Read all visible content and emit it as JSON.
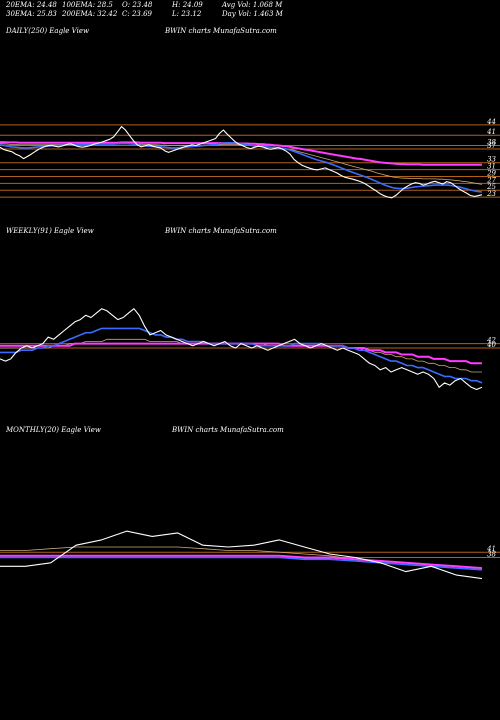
{
  "header": {
    "ema20": "20EMA: 24.48",
    "ema100": "100EMA: 28.5",
    "open": "O: 23.48",
    "high": "H: 24.09",
    "avgvol": "Avg Vol: 1.068 M",
    "ema30": "30EMA: 25.83",
    "ema200": "200EMA: 32.42",
    "close": "C: 23.69",
    "low": "L: 23.12",
    "dayvol": "Day Vol: 1.463 M"
  },
  "panels": {
    "daily": {
      "left_title": "DAILY(250) Eagle  View",
      "right_title": "BWIN  charts MunafaSutra.com"
    },
    "weekly": {
      "left_title": "WEEKLY(91) Eagle  View",
      "right_title": "BWIN  charts MunafaSutra.com"
    },
    "monthly": {
      "left_title": "MONTHLY(20) Eagle  View",
      "right_title": "BWIN  charts MunafaSutra.com"
    }
  },
  "colors": {
    "background": "#000000",
    "price": "#ffffff",
    "ema_short": "#3a6cff",
    "ema_long": "#ff3cff",
    "level_line": "#b0601a",
    "ema_mid": "#c8a878"
  },
  "chart_data": [
    {
      "type": "line",
      "name": "daily",
      "levels": [
        44,
        41,
        38,
        37,
        33,
        31,
        29,
        27,
        25,
        23
      ],
      "level_labels": [
        "44",
        "41",
        "38",
        "37",
        "33",
        "31",
        "29",
        "27",
        "25",
        "23"
      ],
      "ylim": [
        21,
        46
      ],
      "price": [
        37.5,
        36.8,
        36.5,
        36.2,
        35.5,
        35.0,
        34.2,
        34.8,
        35.5,
        36.3,
        37.0,
        37.5,
        37.9,
        38.1,
        37.8,
        37.6,
        37.9,
        38.3,
        38.5,
        38.1,
        37.7,
        37.5,
        37.7,
        38.0,
        38.4,
        38.7,
        39.0,
        39.4,
        39.8,
        40.5,
        42.0,
        43.5,
        42.5,
        41.0,
        39.5,
        38.2,
        37.6,
        37.9,
        38.2,
        37.8,
        37.5,
        37.3,
        36.5,
        36.0,
        36.4,
        36.8,
        37.2,
        37.6,
        37.9,
        38.2,
        38.0,
        38.4,
        38.8,
        39.2,
        39.6,
        40.0,
        41.5,
        42.5,
        41.3,
        40.2,
        39.1,
        38.4,
        37.9,
        37.4,
        37.1,
        37.5,
        37.8,
        37.6,
        37.2,
        36.9,
        37.1,
        37.4,
        37.0,
        36.4,
        35.5,
        34.0,
        33.1,
        32.3,
        31.8,
        31.4,
        31.1,
        30.9,
        31.2,
        31.5,
        31.0,
        30.5,
        30.0,
        29.3,
        28.8,
        28.5,
        28.2,
        27.9,
        27.5,
        27.0,
        26.3,
        25.5,
        24.8,
        24.0,
        23.4,
        23.0,
        22.8,
        23.5,
        24.5,
        25.5,
        26.2,
        26.8,
        27.2,
        27.0,
        26.5,
        26.8,
        27.3,
        27.6,
        27.2,
        26.8,
        27.5,
        27.2,
        26.4,
        25.5,
        24.8,
        24.2,
        23.5,
        23.2,
        23.4,
        23.69
      ],
      "ema_short": [
        38.2,
        38.0,
        37.8,
        37.6,
        37.5,
        37.4,
        37.3,
        37.3,
        37.4,
        37.5,
        37.6,
        37.7,
        37.8,
        37.9,
        38.0,
        38.0,
        38.1,
        38.1,
        38.2,
        38.2,
        38.3,
        38.3,
        38.3,
        38.3,
        38.3,
        38.4,
        38.4,
        38.4,
        38.4,
        38.4,
        38.5,
        38.6,
        38.6,
        38.5,
        38.4,
        38.2,
        38.0,
        37.9,
        37.8,
        37.7,
        37.7,
        37.6,
        37.5,
        37.4,
        37.3,
        37.3,
        37.4,
        37.5,
        37.6,
        37.7,
        37.8,
        37.9,
        38.0,
        38.1,
        38.2,
        38.3,
        38.5,
        38.7,
        38.8,
        38.8,
        38.7,
        38.6,
        38.4,
        38.2,
        38.0,
        37.9,
        37.8,
        37.7,
        37.6,
        37.5,
        37.4,
        37.3,
        37.2,
        37.0,
        36.7,
        36.3,
        35.9,
        35.5,
        35.0,
        34.6,
        34.2,
        33.8,
        33.5,
        33.2,
        32.8,
        32.4,
        32.0,
        31.5,
        31.1,
        30.6,
        30.2,
        29.8,
        29.4,
        29.0,
        28.6,
        28.1,
        27.6,
        27.1,
        26.6,
        26.2,
        25.8,
        25.6,
        25.5,
        25.5,
        25.6,
        25.8,
        26.0,
        26.1,
        26.2,
        26.3,
        26.4,
        26.5,
        26.5,
        26.5,
        26.5,
        26.4,
        26.2,
        26.0,
        25.7,
        25.4,
        25.1,
        24.8,
        24.6,
        24.48
      ],
      "ema_long": [
        39.0,
        39.0,
        38.9,
        38.9,
        38.9,
        38.8,
        38.8,
        38.8,
        38.8,
        38.8,
        38.8,
        38.8,
        38.8,
        38.8,
        38.8,
        38.8,
        38.8,
        38.8,
        38.8,
        38.8,
        38.8,
        38.8,
        38.8,
        38.8,
        38.8,
        38.8,
        38.8,
        38.8,
        38.8,
        38.8,
        38.8,
        38.9,
        38.9,
        38.9,
        38.9,
        38.9,
        38.8,
        38.8,
        38.8,
        38.8,
        38.8,
        38.8,
        38.7,
        38.7,
        38.7,
        38.7,
        38.7,
        38.7,
        38.7,
        38.7,
        38.7,
        38.7,
        38.7,
        38.7,
        38.7,
        38.7,
        38.7,
        38.7,
        38.7,
        38.7,
        38.7,
        38.6,
        38.6,
        38.6,
        38.5,
        38.5,
        38.4,
        38.4,
        38.3,
        38.2,
        38.1,
        38.0,
        37.9,
        37.8,
        37.6,
        37.4,
        37.2,
        37.0,
        36.8,
        36.6,
        36.4,
        36.2,
        36.0,
        35.8,
        35.6,
        35.4,
        35.2,
        35.0,
        34.8,
        34.6,
        34.4,
        34.2,
        34.1,
        33.9,
        33.7,
        33.5,
        33.3,
        33.1,
        33.0,
        32.9,
        32.8,
        32.7,
        32.6,
        32.6,
        32.5,
        32.5,
        32.5,
        32.5,
        32.4,
        32.4,
        32.4,
        32.4,
        32.4,
        32.4,
        32.4,
        32.4,
        32.4,
        32.4,
        32.4,
        32.4,
        32.4,
        32.4,
        32.4,
        32.42
      ],
      "ema_mid": [
        38.6,
        38.5,
        38.4,
        38.3,
        38.3,
        38.2,
        38.2,
        38.2,
        38.2,
        38.2,
        38.2,
        38.2,
        38.2,
        38.2,
        38.3,
        38.3,
        38.3,
        38.3,
        38.3,
        38.3,
        38.4,
        38.4,
        38.4,
        38.4,
        38.4,
        38.4,
        38.4,
        38.4,
        38.4,
        38.4,
        38.4,
        38.5,
        38.5,
        38.5,
        38.5,
        38.4,
        38.4,
        38.3,
        38.3,
        38.2,
        38.2,
        38.1,
        38.1,
        38.0,
        38.0,
        38.0,
        38.0,
        38.0,
        38.0,
        38.0,
        38.0,
        38.0,
        38.1,
        38.1,
        38.1,
        38.2,
        38.2,
        38.3,
        38.3,
        38.3,
        38.3,
        38.2,
        38.2,
        38.1,
        38.0,
        38.0,
        37.9,
        37.8,
        37.7,
        37.6,
        37.5,
        37.4,
        37.3,
        37.1,
        36.9,
        36.6,
        36.3,
        36.0,
        35.7,
        35.4,
        35.1,
        34.8,
        34.5,
        34.2,
        33.9,
        33.6,
        33.3,
        33.0,
        32.6,
        32.3,
        32.0,
        31.7,
        31.4,
        31.1,
        30.8,
        30.5,
        30.1,
        29.8,
        29.5,
        29.2,
        28.9,
        28.7,
        28.6,
        28.5,
        28.5,
        28.4,
        28.4,
        28.4,
        28.3,
        28.3,
        28.3,
        28.3,
        28.2,
        28.2,
        28.1,
        28.0,
        27.9,
        27.8,
        27.6,
        27.5,
        27.3,
        27.1,
        26.9,
        26.7
      ]
    },
    {
      "type": "line",
      "name": "weekly",
      "levels": [
        42,
        40
      ],
      "level_labels": [
        "42",
        "40"
      ],
      "ylim": [
        18,
        62
      ],
      "price": [
        35,
        34,
        35,
        38,
        40,
        41,
        40,
        41,
        42,
        45,
        44,
        46,
        48,
        50,
        52,
        53,
        55,
        54,
        56,
        58,
        57,
        55,
        53,
        54,
        56,
        58,
        55,
        50,
        46,
        47,
        48,
        46,
        45,
        44,
        43,
        42,
        41,
        42,
        43,
        42,
        41,
        42,
        43,
        41,
        40,
        42,
        41,
        40,
        41,
        40,
        39,
        40,
        41,
        42,
        43,
        44,
        42,
        41,
        40,
        41,
        42,
        41,
        40,
        39,
        40,
        39,
        38,
        37,
        35,
        33,
        32,
        30,
        31,
        29,
        30,
        31,
        30,
        29,
        28,
        29,
        28,
        26,
        22,
        24,
        23,
        25,
        26,
        24,
        22,
        21,
        22
      ],
      "ema_short": [
        38,
        38,
        38,
        38,
        39,
        39,
        39,
        40,
        40,
        41,
        41,
        42,
        43,
        44,
        45,
        46,
        47,
        47,
        48,
        49,
        49,
        49,
        49,
        49,
        49,
        49,
        49,
        48,
        47,
        46,
        46,
        45,
        45,
        44,
        44,
        43,
        43,
        43,
        43,
        42,
        42,
        42,
        42,
        42,
        42,
        42,
        42,
        42,
        41,
        41,
        41,
        41,
        41,
        41,
        41,
        42,
        42,
        42,
        42,
        42,
        42,
        41,
        41,
        41,
        41,
        40,
        40,
        39,
        39,
        38,
        37,
        36,
        35,
        34,
        34,
        33,
        32,
        32,
        31,
        31,
        30,
        29,
        28,
        27,
        27,
        26,
        26,
        26,
        25,
        25,
        24
      ],
      "ema_long": [
        41,
        41,
        41,
        41,
        41,
        41,
        41,
        41,
        41,
        41,
        41,
        41,
        41,
        41,
        42,
        42,
        42,
        42,
        42,
        42,
        42,
        42,
        42,
        42,
        42,
        42,
        42,
        42,
        42,
        42,
        42,
        42,
        42,
        42,
        42,
        42,
        42,
        42,
        42,
        42,
        42,
        42,
        42,
        42,
        42,
        42,
        42,
        42,
        42,
        42,
        42,
        42,
        42,
        41,
        41,
        41,
        41,
        41,
        41,
        41,
        41,
        41,
        41,
        41,
        41,
        40,
        40,
        40,
        40,
        39,
        39,
        39,
        38,
        38,
        38,
        37,
        37,
        37,
        36,
        36,
        36,
        35,
        35,
        35,
        34,
        34,
        34,
        34,
        33,
        33,
        33
      ],
      "ema_mid": [
        40,
        40,
        40,
        40,
        40,
        40,
        40,
        40,
        40,
        40,
        41,
        41,
        41,
        42,
        42,
        42,
        43,
        43,
        43,
        43,
        44,
        44,
        44,
        44,
        44,
        44,
        44,
        44,
        43,
        43,
        43,
        43,
        43,
        43,
        42,
        42,
        42,
        42,
        42,
        42,
        42,
        42,
        42,
        42,
        42,
        42,
        42,
        42,
        42,
        42,
        41,
        41,
        41,
        41,
        41,
        41,
        41,
        41,
        41,
        41,
        41,
        41,
        41,
        41,
        41,
        40,
        40,
        40,
        39,
        39,
        38,
        38,
        37,
        37,
        36,
        36,
        35,
        35,
        34,
        34,
        33,
        33,
        32,
        32,
        31,
        31,
        30,
        30,
        29,
        29,
        29
      ]
    },
    {
      "type": "line",
      "name": "monthly",
      "levels": [
        41,
        38
      ],
      "level_labels": [
        "41",
        "38"
      ],
      "ylim": [
        15,
        65
      ],
      "price": [
        33,
        33,
        35,
        45,
        48,
        53,
        50,
        52,
        45,
        44,
        45,
        48,
        44,
        40,
        38,
        35,
        30,
        33,
        28,
        26
      ],
      "ema_short": [
        38,
        38,
        38,
        38,
        38,
        38,
        38,
        38,
        38,
        38,
        38,
        38,
        37,
        37,
        36,
        35,
        34,
        33,
        32,
        31
      ],
      "ema_long": [
        39,
        39,
        39,
        39,
        39,
        39,
        39,
        39,
        39,
        39,
        39,
        39,
        38,
        38,
        37,
        36,
        35,
        34,
        33,
        32
      ],
      "ema_mid": [
        42,
        42,
        43,
        44,
        44,
        44,
        44,
        44,
        43,
        42,
        42,
        41,
        40,
        39,
        37,
        36,
        35,
        34,
        33,
        32
      ]
    }
  ]
}
